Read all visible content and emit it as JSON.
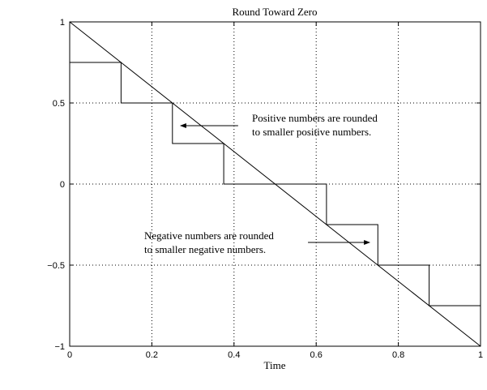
{
  "chart_data": {
    "type": "line",
    "title": "Round Toward Zero",
    "xlabel": "Time",
    "ylabel": "",
    "xlim": [
      0,
      1
    ],
    "ylim": [
      -1,
      1
    ],
    "grid": true,
    "x_ticks": [
      0,
      0.2,
      0.4,
      0.6,
      0.8,
      1
    ],
    "x_tick_labels": [
      "0",
      "0.2",
      "0.4",
      "0.6",
      "0.8",
      "1"
    ],
    "y_ticks": [
      -1,
      -0.5,
      0,
      0.5,
      1
    ],
    "y_tick_labels": [
      "−1",
      "−0.5",
      "0",
      "0.5",
      "1"
    ],
    "series": [
      {
        "style": "line",
        "x": [
          0,
          1
        ],
        "y": [
          1,
          -1
        ]
      },
      {
        "style": "stairs",
        "x": [
          0,
          0.125,
          0.125,
          0.25,
          0.25,
          0.375,
          0.375,
          0.625,
          0.625,
          0.75,
          0.75,
          0.875,
          0.875,
          1
        ],
        "y": [
          0.75,
          0.75,
          0.5,
          0.5,
          0.25,
          0.25,
          0,
          0,
          -0.25,
          -0.25,
          -0.5,
          -0.5,
          -0.75,
          -0.75
        ]
      }
    ],
    "annotations": [
      {
        "lines": [
          "Positive numbers are rounded",
          "to smaller positive numbers."
        ],
        "arrow_from": [
          0.41,
          0.36
        ],
        "arrow_to": [
          0.27,
          0.36
        ]
      },
      {
        "lines": [
          "Negative numbers are rounded",
          "to smaller negative numbers."
        ],
        "arrow_from": [
          0.58,
          -0.36
        ],
        "arrow_to": [
          0.73,
          -0.36
        ]
      }
    ],
    "colors": {
      "foreground": "#000000",
      "grid": "#000000",
      "background": "#ffffff"
    }
  }
}
